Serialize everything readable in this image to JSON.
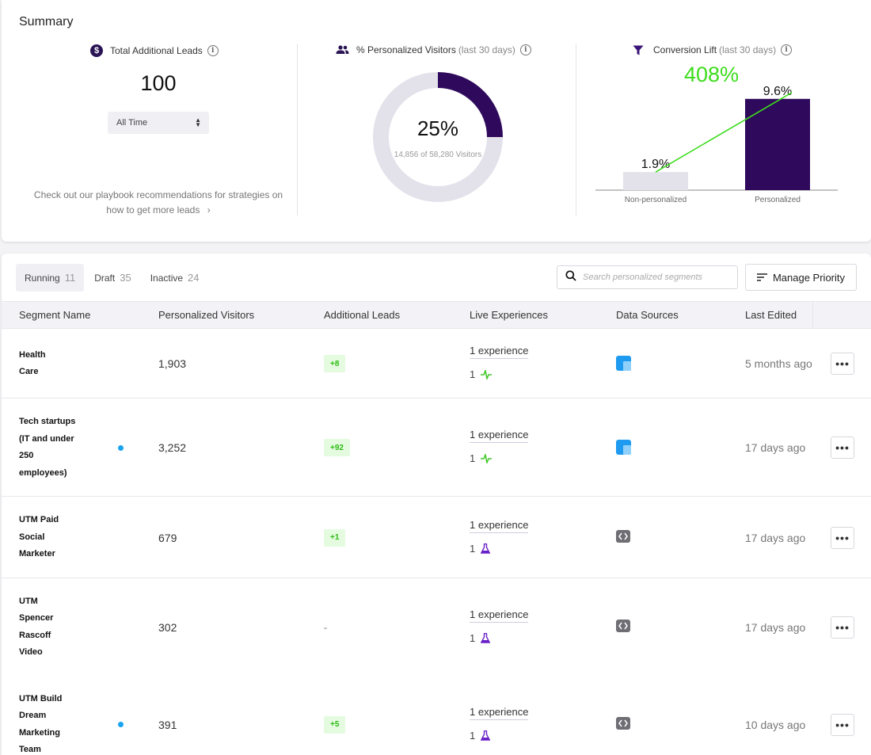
{
  "summary": {
    "title": "Summary",
    "total_leads": {
      "label": "Total Additional Leads",
      "value": "100",
      "time_select": "All Time",
      "playbook_text": "Check out our playbook recommendations for strategies on how to get more leads",
      "playbook_arrow": "›"
    },
    "personalized": {
      "label": "% Personalized Visitors",
      "label_muted": "(last 30 days)",
      "percent_text": "25%",
      "percent_value": 25,
      "sub": "14,856 of 58,280 Visitors",
      "colors": {
        "fill": "#2f0a5c",
        "track": "#e3e1ea"
      }
    },
    "conversion": {
      "label": "Conversion Lift",
      "label_muted": "(last 30 days)",
      "lift_text": "408%",
      "colors": {
        "lift": "#3ddc1c",
        "personalized": "#2f0a5c",
        "non_personalized": "#e3e1ea"
      }
    }
  },
  "chart_data": {
    "type": "bar",
    "categories": [
      "Non-personalized",
      "Personalized"
    ],
    "values": [
      1.9,
      9.6
    ],
    "data_labels": [
      "1.9%",
      "9.6%"
    ],
    "title": "",
    "xlabel": "",
    "ylabel": "",
    "ylim": [
      0,
      10
    ],
    "grid": false,
    "trend_line": true
  },
  "tabs": [
    {
      "label": "Running",
      "count": "11",
      "active": true
    },
    {
      "label": "Draft",
      "count": "35",
      "active": false
    },
    {
      "label": "Inactive",
      "count": "24",
      "active": false
    }
  ],
  "search": {
    "placeholder": "Search personalized segments"
  },
  "manage_priority": "Manage Priority",
  "columns": {
    "segment": "Segment Name",
    "visitors": "Personalized Visitors",
    "leads": "Additional Leads",
    "experiences": "Live Experiences",
    "sources": "Data Sources",
    "edited": "Last Edited"
  },
  "rows": [
    {
      "name": "Health\nCare",
      "dot": false,
      "visitors": "1,903",
      "leads": "+8",
      "experience": "1 experience",
      "exp_count": "1",
      "exp_icon": "pulse-icon",
      "source_icon": "blue-square-icon",
      "edited": "5 months ago",
      "more": "•••"
    },
    {
      "name": "Tech startups\n(IT and under\n250\nemployees)",
      "dot": true,
      "visitors": "3,252",
      "leads": "+92",
      "experience": "1 experience",
      "exp_count": "1",
      "exp_icon": "pulse-icon",
      "source_icon": "blue-square-icon",
      "edited": "17 days ago",
      "more": "•••"
    },
    {
      "name": "UTM Paid\nSocial\nMarketer",
      "dot": false,
      "visitors": "679",
      "leads": "+1",
      "experience": "1 experience",
      "exp_count": "1",
      "exp_icon": "flask-icon",
      "source_icon": "code-icon",
      "edited": "17 days ago",
      "more": "•••"
    },
    {
      "name": "UTM\nSpencer\nRascoff\nVideo",
      "dot": false,
      "visitors": "302",
      "leads": "-",
      "experience": "1 experience",
      "exp_count": "1",
      "exp_icon": "flask-icon",
      "source_icon": "code-icon",
      "edited": "17 days ago",
      "more": "•••"
    },
    {
      "name": "UTM Build\nDream\nMarketing\nTeam",
      "dot": true,
      "visitors": "391",
      "leads": "+5",
      "experience": "1 experience",
      "exp_count": "1",
      "exp_icon": "flask-icon",
      "source_icon": "code-icon",
      "edited": "10 days ago",
      "more": "•••"
    }
  ]
}
